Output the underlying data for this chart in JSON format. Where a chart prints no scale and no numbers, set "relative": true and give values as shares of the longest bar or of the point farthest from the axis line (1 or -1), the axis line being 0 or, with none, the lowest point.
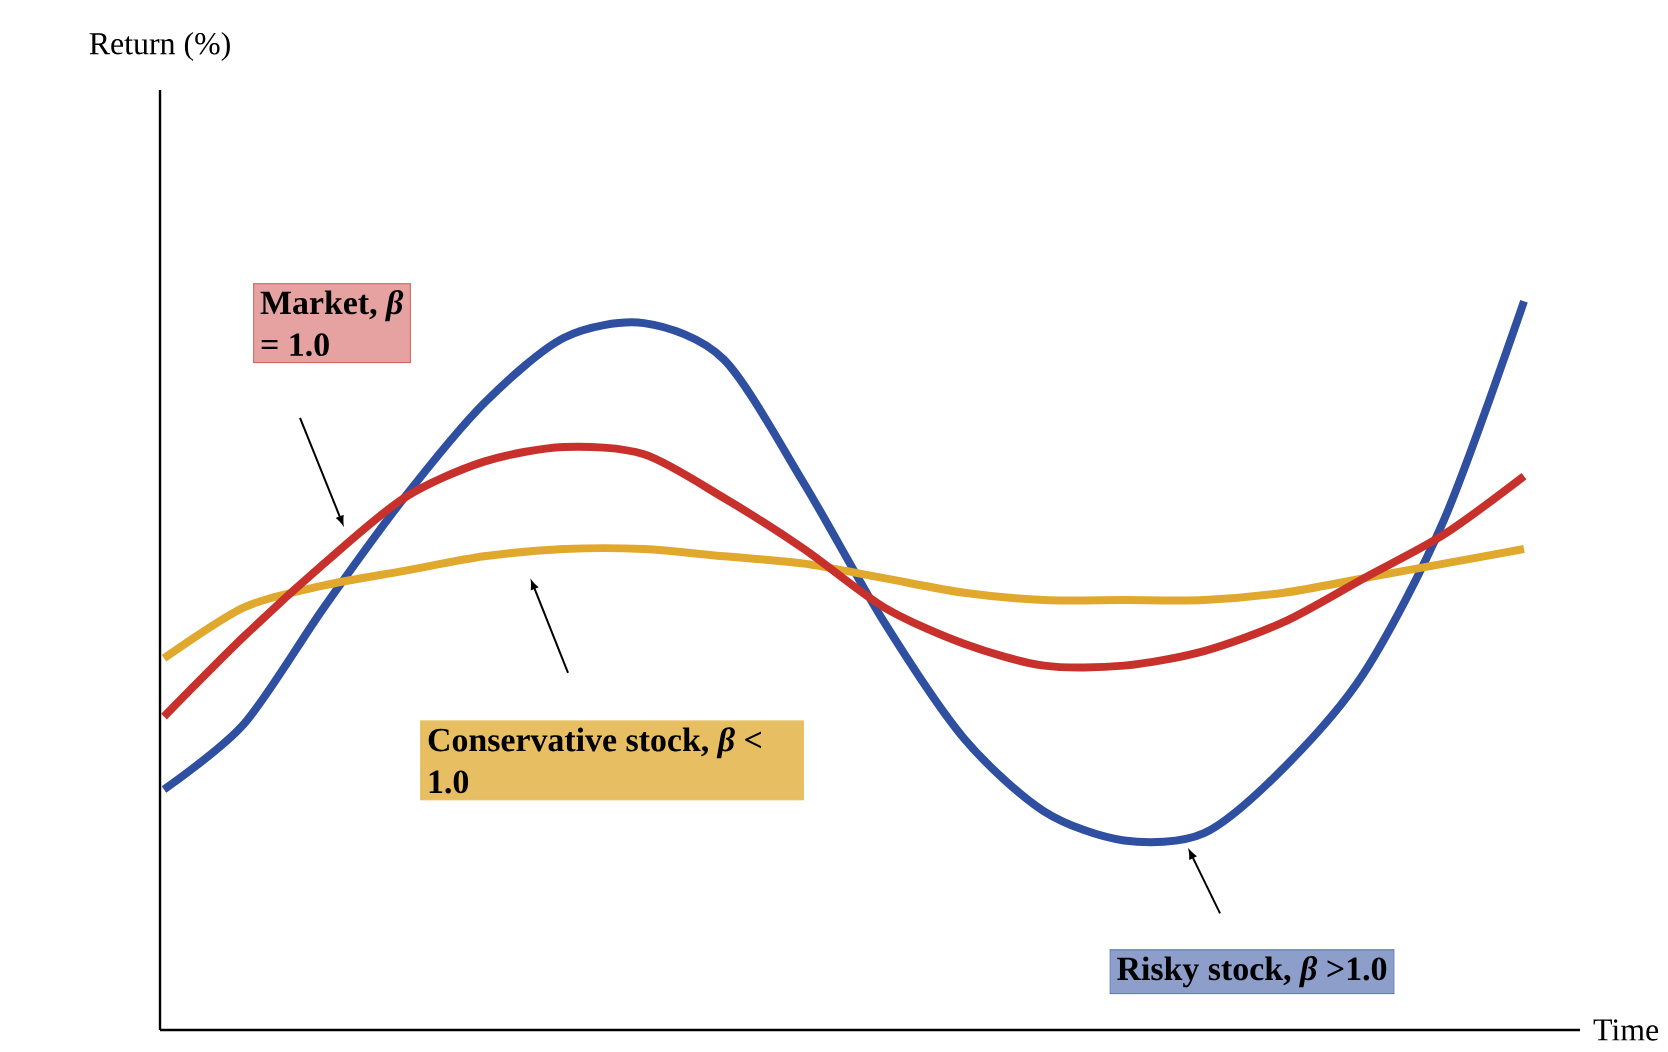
{
  "chart_data": {
    "type": "line",
    "relative": true,
    "annotations": [
      "Return (%)"
    ],
    "xlabel": "Time",
    "categories": [
      null,
      null,
      null,
      null,
      null,
      null,
      null,
      null,
      null,
      null,
      null,
      null,
      null,
      null,
      null,
      null,
      null,
      null
    ],
    "series": [
      {
        "name": "Risky stock, *β* >1.0",
        "color": "#2f4fa0",
        "values": [
          0.33,
          0.42,
          0.58,
          0.73,
          0.86,
          0.95,
          0.97,
          0.92,
          0.75,
          0.56,
          0.4,
          0.3,
          0.26,
          0.27,
          0.36,
          0.49,
          0.7,
          1
        ]
      },
      {
        "name": "Conservative stock, *β* < 1.0",
        "color": "#e0a92e",
        "values": [
          0.51,
          0.58,
          0.61,
          0.63,
          0.65,
          0.66,
          0.66,
          0.65,
          0.64,
          0.62,
          0.6,
          0.59,
          0.59,
          0.59,
          0.6,
          0.62,
          0.64,
          0.66
        ]
      },
      {
        "name": "Market, *β* = 1.0",
        "color": "#c8312b",
        "values": [
          0.43,
          0.54,
          0.64,
          0.73,
          0.78,
          0.8,
          0.79,
          0.73,
          0.66,
          0.58,
          0.53,
          0.5,
          0.5,
          0.52,
          0.56,
          0.62,
          0.68,
          0.76
        ]
      }
    ]
  }
}
